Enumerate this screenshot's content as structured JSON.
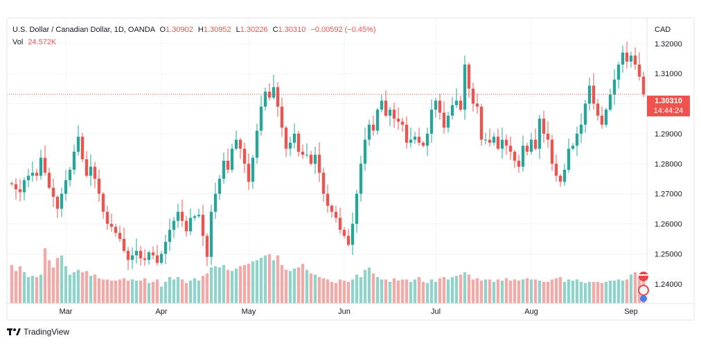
{
  "legend": {
    "title": "U.S. Dollar / Canadian Dollar, 1D, OANDA",
    "o_label": "O",
    "o_value": "1.30902",
    "h_label": "H",
    "h_value": "1.30952",
    "l_label": "L",
    "l_value": "1.30226",
    "c_label": "C",
    "c_value": "1.30310",
    "change": "−0.00592 (−0.45%)",
    "vol_label": "Vol",
    "vol_value": "24.572K"
  },
  "brand": {
    "name": "TradingView",
    "icon": "tradingview-logo-icon"
  },
  "last_price": {
    "price": "1.30310",
    "countdown": "14:44:24",
    "value": 1.3031
  },
  "colors": {
    "up": "#26a69a",
    "down": "#ef5350",
    "up_vol": "#8fd3cb",
    "down_vol": "#f5a9a7",
    "grid": "#f0f3fa",
    "axis_text": "#131722"
  },
  "chart_data": {
    "type": "candlestick",
    "currency": "CAD",
    "y_ticks": [
      1.32,
      1.31,
      1.3,
      1.29,
      1.28,
      1.27,
      1.26,
      1.25,
      1.24
    ],
    "y_tick_labels": [
      "1.32000",
      "1.31000",
      "1.30000",
      "1.29000",
      "1.28000",
      "1.27000",
      "1.26000",
      "1.25000",
      "1.24000"
    ],
    "ylim": [
      1.2335,
      1.3285
    ],
    "x_tick_labels": [
      {
        "label": "Mar",
        "index": 13
      },
      {
        "label": "Apr",
        "index": 36
      },
      {
        "label": "May",
        "index": 57
      },
      {
        "label": "Jun",
        "index": 80
      },
      {
        "label": "Jul",
        "index": 102
      },
      {
        "label": "Aug",
        "index": 125
      },
      {
        "label": "Sep",
        "index": 149
      }
    ],
    "grid": true,
    "closes": [
      1.2732,
      1.2715,
      1.2705,
      1.2745,
      1.276,
      1.277,
      1.276,
      1.282,
      1.277,
      1.272,
      1.269,
      1.265,
      1.27,
      1.2745,
      1.278,
      1.284,
      1.289,
      1.2815,
      1.276,
      1.279,
      1.275,
      1.27,
      1.264,
      1.26,
      1.259,
      1.257,
      1.255,
      1.251,
      1.248,
      1.2495,
      1.251,
      1.2485,
      1.248,
      1.2505,
      1.2495,
      1.247,
      1.25,
      1.254,
      1.258,
      1.261,
      1.264,
      1.261,
      1.2575,
      1.262,
      1.2625,
      1.263,
      1.256,
      1.249,
      1.264,
      1.27,
      1.275,
      1.281,
      1.278,
      1.285,
      1.288,
      1.285,
      1.28,
      1.274,
      1.282,
      1.291,
      1.299,
      1.304,
      1.302,
      1.3055,
      1.299,
      1.292,
      1.285,
      1.287,
      1.29,
      1.284,
      1.283,
      1.283,
      1.28,
      1.283,
      1.277,
      1.27,
      1.266,
      1.264,
      1.262,
      1.258,
      1.256,
      1.253,
      1.26,
      1.27,
      1.28,
      1.288,
      1.293,
      1.291,
      1.298,
      1.301,
      1.296,
      1.298,
      1.295,
      1.294,
      1.293,
      1.287,
      1.288,
      1.289,
      1.287,
      1.286,
      1.29,
      1.298,
      1.301,
      1.297,
      1.292,
      1.296,
      1.2995,
      1.301,
      1.298,
      1.313,
      1.305,
      1.3,
      1.299,
      1.288,
      1.288,
      1.287,
      1.289,
      1.285,
      1.288,
      1.286,
      1.284,
      1.281,
      1.279,
      1.286,
      1.284,
      1.288,
      1.285,
      1.295,
      1.29,
      1.288,
      1.28,
      1.276,
      1.274,
      1.278,
      1.285,
      1.286,
      1.29,
      1.293,
      1.3,
      1.306,
      1.3,
      1.296,
      1.293,
      1.298,
      1.303,
      1.308,
      1.313,
      1.317,
      1.314,
      1.316,
      1.313,
      1.309,
      1.3031
    ],
    "volumes": [
      32,
      27,
      31,
      26,
      22,
      23,
      22,
      24,
      46,
      36,
      30,
      38,
      40,
      31,
      24,
      26,
      28,
      26,
      27,
      23,
      24,
      21,
      20,
      20,
      19,
      19,
      20,
      21,
      19,
      20,
      19,
      19,
      21,
      17,
      18,
      20,
      14,
      18,
      22,
      20,
      22,
      20,
      17,
      19,
      21,
      19,
      23,
      25,
      30,
      31,
      30,
      32,
      28,
      27,
      29,
      31,
      32,
      33,
      35,
      36,
      38,
      40,
      41,
      36,
      40,
      32,
      28,
      27,
      29,
      30,
      33,
      28,
      25,
      24,
      22,
      21,
      20,
      18,
      17,
      20,
      19,
      18,
      20,
      24,
      22,
      28,
      30,
      25,
      22,
      20,
      20,
      18,
      21,
      19,
      20,
      20,
      18,
      20,
      22,
      18,
      17,
      20,
      18,
      21,
      22,
      20,
      22,
      23,
      24,
      26,
      24,
      20,
      21,
      19,
      20,
      20,
      18,
      20,
      19,
      21,
      19,
      20,
      19,
      20,
      21,
      20,
      20,
      19,
      18,
      18,
      20,
      21,
      22,
      18,
      20,
      19,
      20,
      18,
      17,
      18,
      18,
      18,
      17,
      18,
      19,
      19,
      20,
      19,
      20,
      24,
      26,
      22,
      21
    ]
  }
}
